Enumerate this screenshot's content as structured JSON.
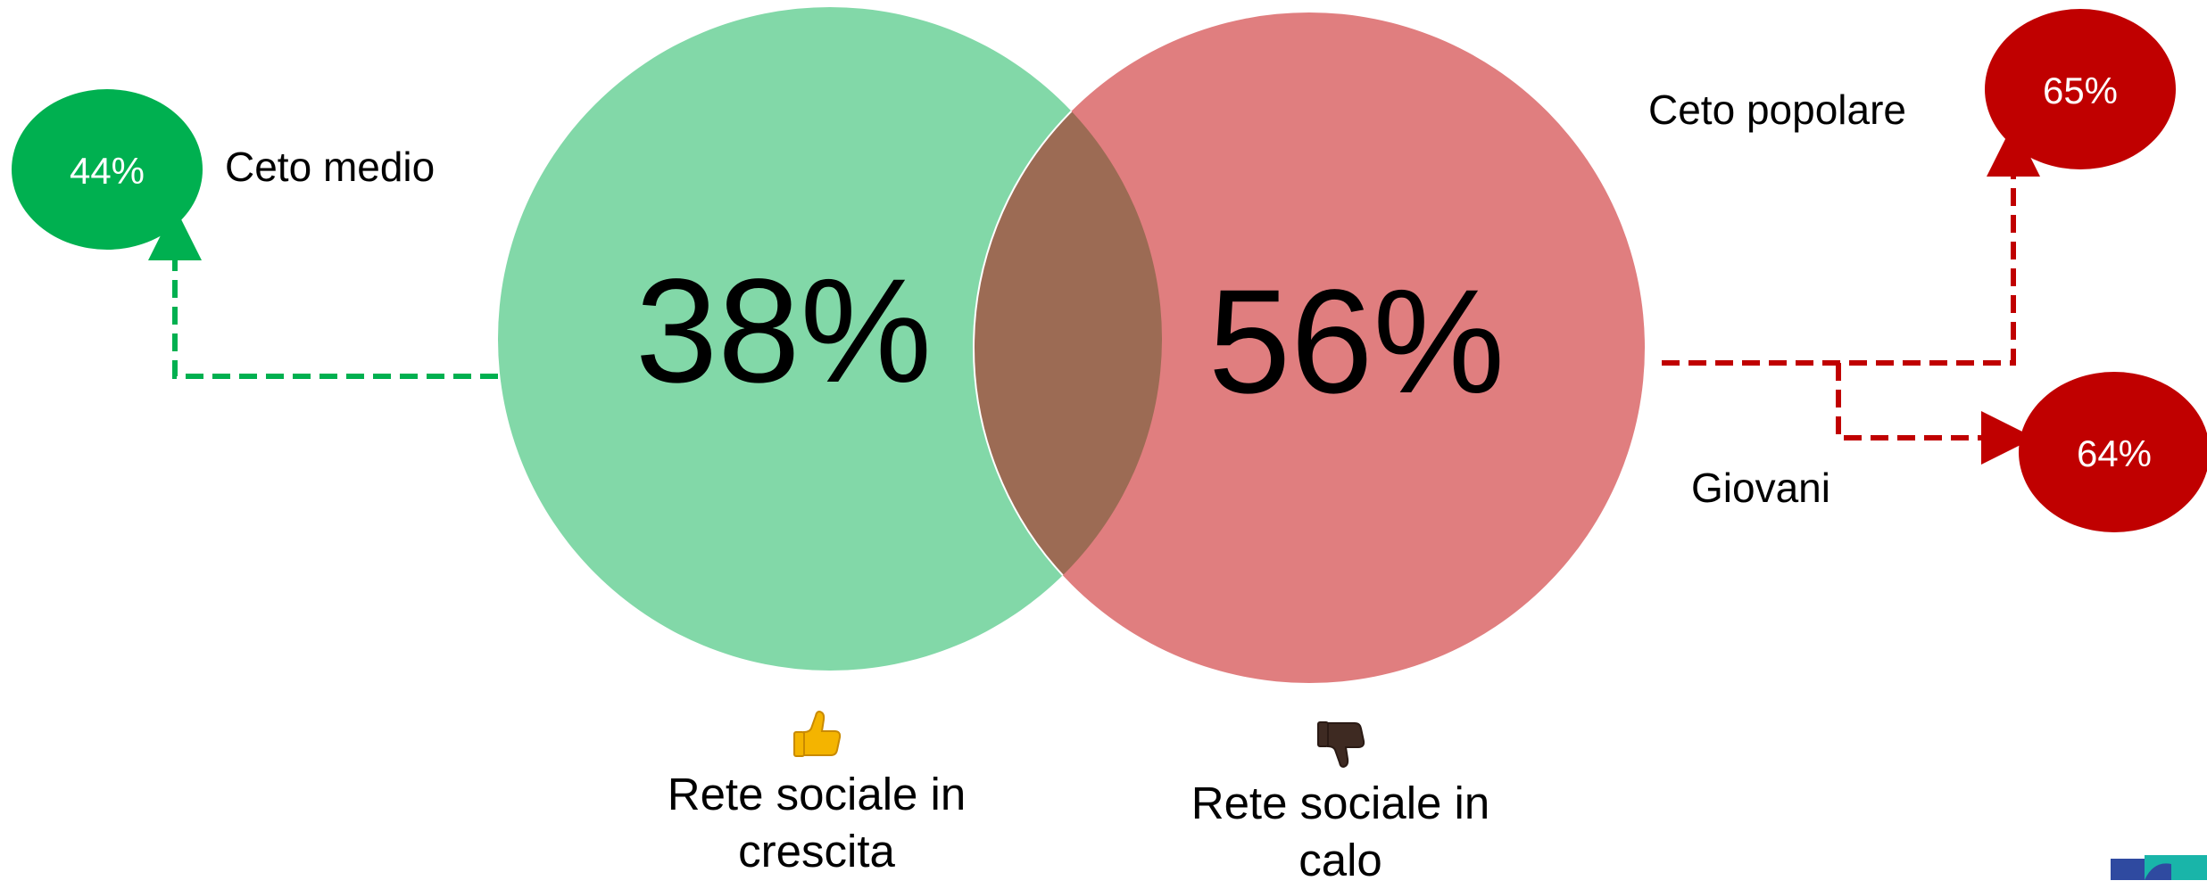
{
  "venn": {
    "left": {
      "value": "38%",
      "caption_line1": "Rete sociale in",
      "caption_line2": "crescita",
      "color": "#82d8a8",
      "icon": "thumbs-up-icon"
    },
    "right": {
      "value": "56%",
      "caption_line1": "Rete sociale in",
      "caption_line2": "calo",
      "color": "#e07e7f",
      "icon": "thumbs-down-icon"
    },
    "overlap_color": "#9c6b54"
  },
  "callouts": {
    "ceto_medio": {
      "label": "Ceto medio",
      "value": "44%",
      "color": "#00b050",
      "arrow_color": "#00b050"
    },
    "ceto_popolare": {
      "label": "Ceto popolare",
      "value": "65%",
      "color": "#c00000",
      "arrow_color": "#c00000"
    },
    "giovani": {
      "label": "Giovani",
      "value": "64%",
      "color": "#c00000",
      "arrow_color": "#c00000"
    }
  }
}
